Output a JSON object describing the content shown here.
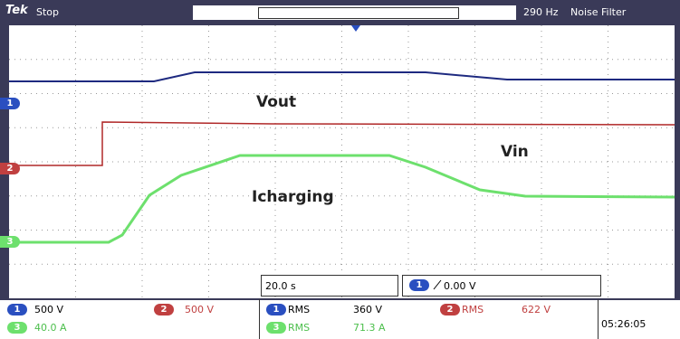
{
  "header": {
    "brand": "Tek",
    "status": "Stop",
    "frequency": "290 Hz",
    "filter": "Noise Filter"
  },
  "channel_markers": [
    "1",
    "2",
    "3"
  ],
  "trace_labels": [
    "Vout",
    "Vin",
    "Icharging"
  ],
  "timebase": "20.0 s",
  "trigger": {
    "channel": "1",
    "level": "0.00 V"
  },
  "channels": [
    {
      "id": "1",
      "scale": "500 V"
    },
    {
      "id": "2",
      "scale": "500 V"
    },
    {
      "id": "3",
      "scale": "40.0 A"
    }
  ],
  "measurements": [
    {
      "channel": "1",
      "type": "RMS",
      "value": "360 V"
    },
    {
      "channel": "2",
      "type": "RMS",
      "value": "622 V"
    },
    {
      "channel": "3",
      "type": "RMS",
      "value": "71.3 A"
    }
  ],
  "clock": "05:26:05"
}
